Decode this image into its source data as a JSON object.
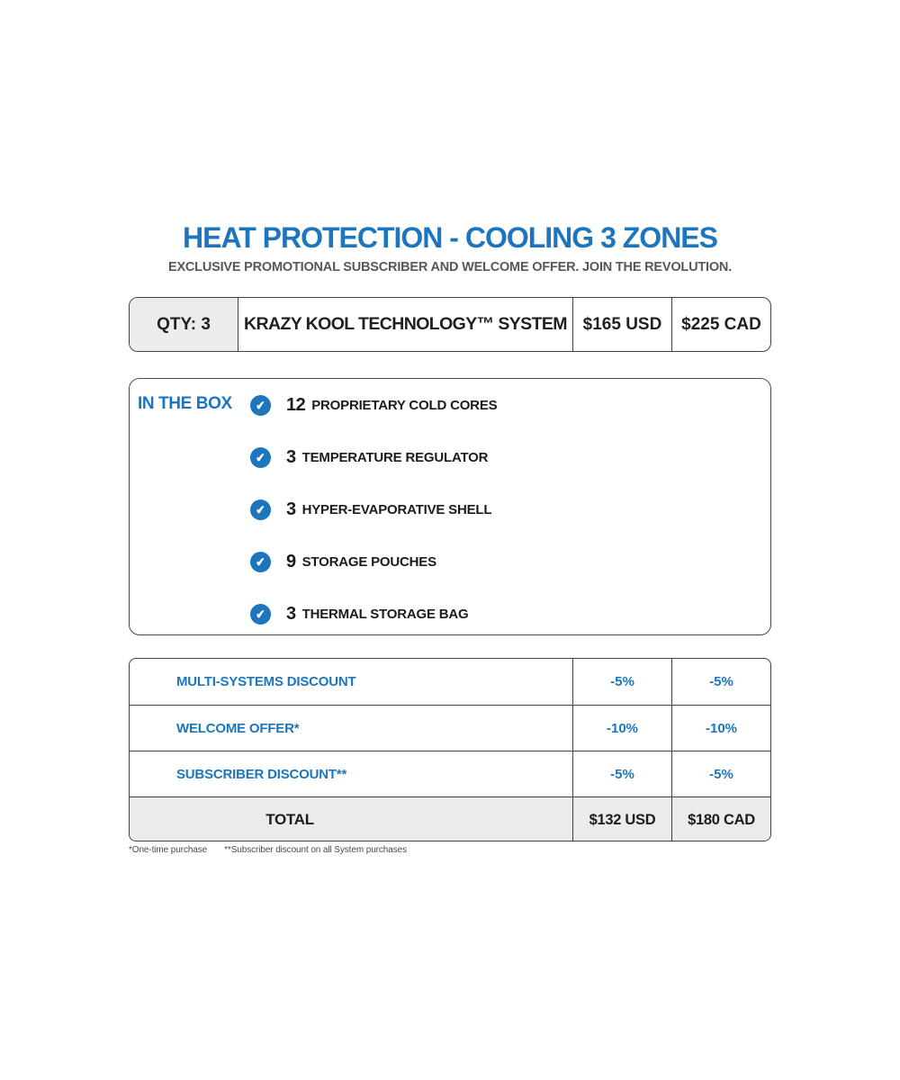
{
  "page": {
    "title": "HEAT PROTECTION - COOLING 3 ZONES",
    "subtitle": "EXCLUSIVE PROMOTIONAL SUBSCRIBER AND WELCOME OFFER. JOIN THE REVOLUTION."
  },
  "colors": {
    "accent_blue": "#1d76bd",
    "subtitle_gray": "#57585a",
    "text_dark": "#231f20",
    "border_dark": "#414042",
    "cell_gray": "#ececed",
    "total_row_gray": "#ebebec"
  },
  "product_row": {
    "qty": "QTY: 3",
    "name": "KRAZY KOOL TECHNOLOGY™ SYSTEM",
    "price_usd": "$165 USD",
    "price_cad": "$225 CAD"
  },
  "in_the_box": {
    "label": "IN THE BOX",
    "check_icon": "✔",
    "items": [
      {
        "qty": "12",
        "name": "PROPRIETARY COLD CORES"
      },
      {
        "qty": "3",
        "name": "TEMPERATURE REGULATOR"
      },
      {
        "qty": "3",
        "name": "HYPER-EVAPORATIVE SHELL"
      },
      {
        "qty": "9",
        "name": "STORAGE POUCHES"
      },
      {
        "qty": "3",
        "name": "THERMAL STORAGE BAG"
      }
    ]
  },
  "discount_table": {
    "rows": [
      {
        "label": "MULTI-SYSTEMS DISCOUNT",
        "usd": "-5%",
        "cad": "-5%"
      },
      {
        "label": "WELCOME OFFER*",
        "usd": "-10%",
        "cad": "-10%"
      },
      {
        "label": "SUBSCRIBER DISCOUNT**",
        "usd": "-5%",
        "cad": "-5%"
      }
    ],
    "total": {
      "label": "TOTAL",
      "usd": "$132 USD",
      "cad": "$180 CAD"
    }
  },
  "footnotes": {
    "note1": "*One-time purchase",
    "note2": "**Subscriber discount on all System purchases"
  }
}
